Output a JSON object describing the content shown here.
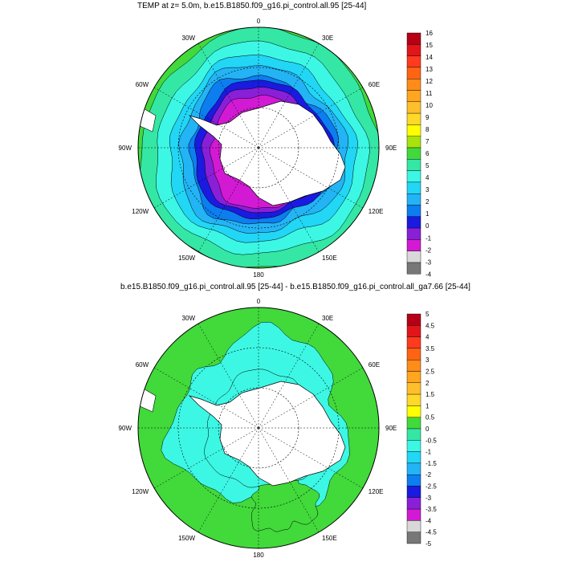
{
  "panels": [
    {
      "title": "TEMP at z=   5.0m, b.e15.B1850.f09_g16.pi_control.all.95 [25-44]",
      "lon_labels": [
        "0",
        "30E",
        "60E",
        "90E",
        "120E",
        "150E",
        "180",
        "150W",
        "120W",
        "90W",
        "60W",
        "30W"
      ],
      "colorbar": {
        "labels": [
          "16",
          "15",
          "14",
          "13",
          "12",
          "11",
          "10",
          "9",
          "8",
          "7",
          "6",
          "5",
          "4",
          "3",
          "2",
          "1",
          "0",
          "-1",
          "-2",
          "-3",
          "-4"
        ],
        "colors": [
          "#b50016",
          "#e2151b",
          "#ff3a1e",
          "#fe6414",
          "#ff8c18",
          "#ffa61e",
          "#ffbe2c",
          "#ffd929",
          "#ffff00",
          "#a8e30c",
          "#42d93b",
          "#34e7a4",
          "#3cf7e4",
          "#22d6f5",
          "#23b4f5",
          "#0c7ef0",
          "#1a1ae0",
          "#8a1fd8",
          "#d21ad4",
          "#d8d8d8",
          "#777777"
        ]
      },
      "fills": [
        "#1a1ae0",
        "#4a7ff0",
        "#22b4f5",
        "#3cf7e4",
        "#34e7a4"
      ],
      "ice_color": "#d21ad4"
    },
    {
      "title": "b.e15.B1850.f09_g16.pi_control.all.95 [25-44] - b.e15.B1850.f09_g16.pi_control.all_ga7.66 [25-44]",
      "lon_labels": [
        "0",
        "30E",
        "60E",
        "90E",
        "120E",
        "150E",
        "180",
        "150W",
        "120W",
        "90W",
        "60W",
        "30W"
      ],
      "colorbar": {
        "labels": [
          "5",
          "4.5",
          "4",
          "3.5",
          "3",
          "2.5",
          "2",
          "1.5",
          "1",
          "0.5",
          "0",
          "-0.5",
          "-1",
          "-1.5",
          "-2",
          "-2.5",
          "-3",
          "-3.5",
          "-4",
          "-4.5",
          "-5"
        ],
        "colors": [
          "#b50016",
          "#e2151b",
          "#ff3a1e",
          "#fe6414",
          "#ff8c18",
          "#ffa61e",
          "#ffbe2c",
          "#ffd929",
          "#ffff00",
          "#42d93b",
          "#34e7a4",
          "#3cf7e4",
          "#22d6f5",
          "#23b4f5",
          "#0c7ef0",
          "#1a1ae0",
          "#8a1fd8",
          "#d21ad4",
          "#d8d8d8",
          "#777777"
        ]
      },
      "fills": [
        "#3cf7e4"
      ],
      "ice_color": "#42d93b"
    }
  ]
}
